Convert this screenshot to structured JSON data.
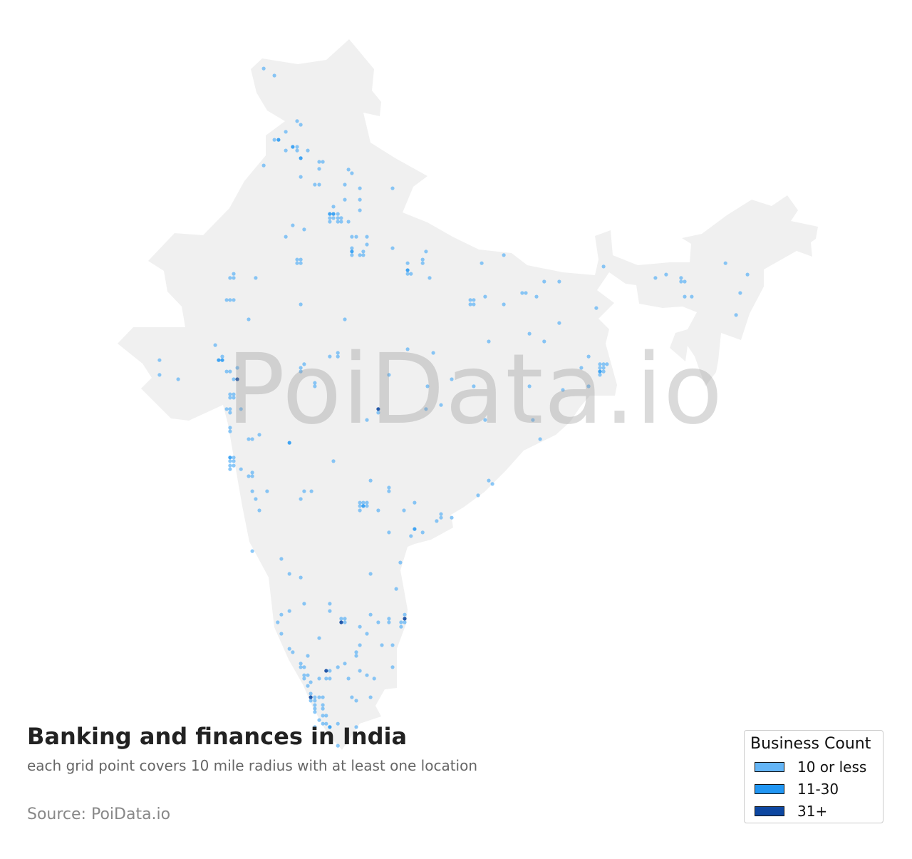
{
  "title": "Banking and finances in India",
  "subtitle": "each grid point covers 10 mile radius with at least one location",
  "source": "Source: PoiData.io",
  "watermark": "PoiData.io",
  "map": {
    "region": "India",
    "land_color": "#f0f0f0"
  },
  "legend": {
    "title": "Business Count",
    "items": [
      {
        "label": "10 or less",
        "color": "#64b5f6"
      },
      {
        "label": "11-30",
        "color": "#2196f3"
      },
      {
        "label": "31+",
        "color": "#0d47a1"
      }
    ]
  },
  "points_format": "[lon, lat, category_index]",
  "points": [
    [
      74.18,
      35.79,
      0
    ],
    [
      74.62,
      35.5,
      0
    ],
    [
      75.56,
      33.62,
      0
    ],
    [
      75.71,
      33.47,
      0
    ],
    [
      75.09,
      33.18,
      0
    ],
    [
      74.62,
      32.85,
      0
    ],
    [
      74.79,
      32.85,
      1
    ],
    [
      75.38,
      32.56,
      1
    ],
    [
      75.56,
      32.56,
      0
    ],
    [
      75.09,
      32.41,
      0
    ],
    [
      75.56,
      32.41,
      0
    ],
    [
      76.0,
      32.41,
      0
    ],
    [
      75.71,
      32.09,
      1
    ],
    [
      74.18,
      31.79,
      0
    ],
    [
      76.47,
      31.94,
      0
    ],
    [
      76.62,
      31.94,
      0
    ],
    [
      76.47,
      31.65,
      0
    ],
    [
      75.71,
      31.32,
      0
    ],
    [
      76.29,
      31.0,
      0
    ],
    [
      76.47,
      31.0,
      0
    ],
    [
      77.68,
      31.62,
      0
    ],
    [
      77.82,
      31.47,
      0
    ],
    [
      77.53,
      31.0,
      0
    ],
    [
      78.15,
      30.85,
      0
    ],
    [
      79.5,
      30.85,
      0
    ],
    [
      78.15,
      30.38,
      0
    ],
    [
      77.53,
      30.38,
      0
    ],
    [
      77.06,
      30.09,
      0
    ],
    [
      76.91,
      29.79,
      1
    ],
    [
      77.06,
      29.79,
      1
    ],
    [
      77.24,
      29.79,
      0
    ],
    [
      76.91,
      29.62,
      0
    ],
    [
      77.06,
      29.62,
      0
    ],
    [
      77.24,
      29.62,
      0
    ],
    [
      77.38,
      29.62,
      0
    ],
    [
      76.91,
      29.47,
      0
    ],
    [
      77.24,
      29.47,
      0
    ],
    [
      77.38,
      29.47,
      0
    ],
    [
      77.68,
      29.47,
      0
    ],
    [
      78.15,
      29.94,
      0
    ],
    [
      75.38,
      29.32,
      0
    ],
    [
      75.85,
      29.15,
      0
    ],
    [
      75.09,
      28.85,
      0
    ],
    [
      77.82,
      28.85,
      0
    ],
    [
      78.0,
      28.85,
      0
    ],
    [
      78.44,
      28.85,
      0
    ],
    [
      78.44,
      28.53,
      0
    ],
    [
      77.82,
      28.38,
      0
    ],
    [
      77.82,
      28.24,
      1
    ],
    [
      78.15,
      28.09,
      0
    ],
    [
      78.29,
      28.24,
      0
    ],
    [
      77.82,
      28.09,
      0
    ],
    [
      78.29,
      28.09,
      0
    ],
    [
      79.5,
      28.38,
      0
    ],
    [
      80.88,
      28.24,
      0
    ],
    [
      80.12,
      27.76,
      0
    ],
    [
      80.74,
      27.91,
      0
    ],
    [
      80.74,
      27.76,
      0
    ],
    [
      80.12,
      27.47,
      1
    ],
    [
      80.12,
      27.32,
      0
    ],
    [
      80.26,
      27.32,
      0
    ],
    [
      81.03,
      27.15,
      0
    ],
    [
      75.56,
      27.91,
      0
    ],
    [
      75.71,
      27.91,
      0
    ],
    [
      75.56,
      27.76,
      0
    ],
    [
      75.71,
      27.76,
      0
    ],
    [
      72.94,
      27.32,
      0
    ],
    [
      72.79,
      27.15,
      0
    ],
    [
      72.94,
      27.15,
      0
    ],
    [
      73.85,
      27.15,
      0
    ],
    [
      72.65,
      26.24,
      0
    ],
    [
      72.79,
      26.24,
      0
    ],
    [
      72.94,
      26.24,
      0
    ],
    [
      75.71,
      26.06,
      0
    ],
    [
      73.56,
      25.44,
      0
    ],
    [
      77.53,
      25.44,
      0
    ],
    [
      83.18,
      27.76,
      0
    ],
    [
      84.09,
      28.09,
      0
    ],
    [
      82.71,
      26.24,
      0
    ],
    [
      82.85,
      26.24,
      0
    ],
    [
      82.71,
      26.06,
      0
    ],
    [
      82.85,
      26.06,
      0
    ],
    [
      83.32,
      26.38,
      0
    ],
    [
      84.09,
      26.06,
      0
    ],
    [
      84.85,
      26.53,
      0
    ],
    [
      85.0,
      26.53,
      0
    ],
    [
      85.44,
      26.38,
      0
    ],
    [
      85.76,
      27.0,
      0
    ],
    [
      86.38,
      27.0,
      0
    ],
    [
      88.21,
      27.62,
      0
    ],
    [
      87.91,
      25.91,
      0
    ],
    [
      86.38,
      25.29,
      0
    ],
    [
      85.15,
      24.85,
      0
    ],
    [
      85.76,
      24.53,
      0
    ],
    [
      83.47,
      24.53,
      0
    ],
    [
      90.35,
      27.15,
      0
    ],
    [
      90.79,
      27.29,
      0
    ],
    [
      91.41,
      27.15,
      0
    ],
    [
      91.56,
      27.0,
      0
    ],
    [
      91.41,
      27.0,
      0
    ],
    [
      91.56,
      26.38,
      0
    ],
    [
      91.85,
      26.38,
      0
    ],
    [
      93.24,
      27.76,
      0
    ],
    [
      94.15,
      27.29,
      0
    ],
    [
      93.85,
      26.53,
      0
    ],
    [
      93.68,
      25.62,
      0
    ],
    [
      87.59,
      23.91,
      0
    ],
    [
      87.29,
      23.44,
      0
    ],
    [
      88.06,
      23.59,
      0
    ],
    [
      88.21,
      23.59,
      0
    ],
    [
      88.35,
      23.59,
      0
    ],
    [
      88.06,
      23.44,
      0
    ],
    [
      88.21,
      23.44,
      0
    ],
    [
      88.06,
      23.29,
      1
    ],
    [
      88.21,
      23.29,
      0
    ],
    [
      88.06,
      23.15,
      0
    ],
    [
      87.59,
      22.68,
      0
    ],
    [
      86.53,
      22.53,
      0
    ],
    [
      85.15,
      22.68,
      0
    ],
    [
      85.29,
      21.29,
      0
    ],
    [
      85.59,
      20.5,
      0
    ],
    [
      83.32,
      21.29,
      0
    ],
    [
      83.47,
      18.79,
      0
    ],
    [
      83.62,
      18.65,
      0
    ],
    [
      83.03,
      18.18,
      0
    ],
    [
      81.94,
      17.26,
      0
    ],
    [
      81.5,
      17.41,
      0
    ],
    [
      81.5,
      17.26,
      0
    ],
    [
      81.32,
      17.12,
      0
    ],
    [
      80.74,
      16.65,
      0
    ],
    [
      80.41,
      16.79,
      1
    ],
    [
      80.26,
      16.5,
      0
    ],
    [
      80.41,
      17.88,
      0
    ],
    [
      79.97,
      17.56,
      0
    ],
    [
      79.35,
      18.5,
      0
    ],
    [
      79.35,
      18.35,
      0
    ],
    [
      78.59,
      18.79,
      0
    ],
    [
      78.15,
      17.88,
      0
    ],
    [
      78.29,
      17.88,
      0
    ],
    [
      78.44,
      17.88,
      0
    ],
    [
      78.15,
      17.74,
      0
    ],
    [
      78.29,
      17.74,
      1
    ],
    [
      78.44,
      17.74,
      0
    ],
    [
      78.15,
      17.56,
      0
    ],
    [
      78.91,
      17.56,
      0
    ],
    [
      79.35,
      16.65,
      0
    ],
    [
      79.82,
      15.41,
      0
    ],
    [
      79.65,
      14.32,
      0
    ],
    [
      78.59,
      14.94,
      0
    ],
    [
      80.0,
      13.26,
      0
    ],
    [
      80.0,
      13.09,
      2
    ],
    [
      79.85,
      12.94,
      0
    ],
    [
      80.0,
      12.94,
      0
    ],
    [
      79.35,
      13.09,
      0
    ],
    [
      79.35,
      12.94,
      0
    ],
    [
      79.85,
      12.76,
      0
    ],
    [
      78.91,
      12.94,
      0
    ],
    [
      78.59,
      13.26,
      0
    ],
    [
      77.38,
      13.09,
      0
    ],
    [
      77.53,
      13.09,
      0
    ],
    [
      77.38,
      12.94,
      2
    ],
    [
      77.53,
      12.94,
      0
    ],
    [
      76.91,
      13.71,
      0
    ],
    [
      76.91,
      13.41,
      0
    ],
    [
      78.15,
      12.76,
      0
    ],
    [
      78.44,
      12.47,
      0
    ],
    [
      79.06,
      12.0,
      0
    ],
    [
      79.5,
      12.0,
      0
    ],
    [
      78.15,
      12.0,
      0
    ],
    [
      78.0,
      11.71,
      0
    ],
    [
      78.0,
      11.56,
      0
    ],
    [
      77.53,
      11.24,
      0
    ],
    [
      77.24,
      11.09,
      0
    ],
    [
      76.91,
      10.94,
      0
    ],
    [
      76.76,
      10.94,
      2
    ],
    [
      76.47,
      12.29,
      0
    ],
    [
      76.0,
      11.56,
      0
    ],
    [
      75.71,
      11.24,
      0
    ],
    [
      75.71,
      11.09,
      0
    ],
    [
      75.85,
      11.09,
      0
    ],
    [
      75.85,
      10.76,
      0
    ],
    [
      76.0,
      10.76,
      0
    ],
    [
      75.85,
      10.62,
      0
    ],
    [
      76.12,
      10.47,
      0
    ],
    [
      76.47,
      10.62,
      0
    ],
    [
      76.76,
      10.62,
      0
    ],
    [
      76.91,
      10.62,
      0
    ],
    [
      77.68,
      10.62,
      0
    ],
    [
      78.15,
      10.94,
      0
    ],
    [
      78.44,
      10.76,
      0
    ],
    [
      78.74,
      10.62,
      0
    ],
    [
      79.5,
      11.09,
      0
    ],
    [
      78.59,
      9.85,
      0
    ],
    [
      77.82,
      9.85,
      0
    ],
    [
      78.0,
      9.71,
      0
    ],
    [
      76.0,
      10.32,
      0
    ],
    [
      76.12,
      10.0,
      0
    ],
    [
      76.12,
      9.85,
      2
    ],
    [
      76.29,
      9.85,
      0
    ],
    [
      76.47,
      9.85,
      0
    ],
    [
      76.62,
      9.85,
      0
    ],
    [
      76.12,
      9.71,
      0
    ],
    [
      76.29,
      9.71,
      0
    ],
    [
      76.29,
      9.53,
      0
    ],
    [
      76.62,
      9.53,
      0
    ],
    [
      76.29,
      9.38,
      0
    ],
    [
      76.62,
      9.38,
      0
    ],
    [
      76.29,
      9.24,
      0
    ],
    [
      76.76,
      9.09,
      0
    ],
    [
      76.62,
      9.09,
      0
    ],
    [
      76.47,
      8.91,
      0
    ],
    [
      76.62,
      8.76,
      0
    ],
    [
      76.76,
      8.76,
      0
    ],
    [
      76.91,
      8.62,
      1
    ],
    [
      77.24,
      8.76,
      0
    ],
    [
      78.0,
      8.62,
      0
    ],
    [
      77.24,
      7.85,
      0
    ],
    [
      76.29,
      8.62,
      0
    ],
    [
      74.91,
      15.56,
      0
    ],
    [
      75.24,
      14.94,
      0
    ],
    [
      75.71,
      14.79,
      0
    ],
    [
      75.85,
      13.71,
      0
    ],
    [
      75.24,
      13.41,
      0
    ],
    [
      74.91,
      13.26,
      0
    ],
    [
      74.76,
      12.94,
      0
    ],
    [
      74.91,
      12.47,
      0
    ],
    [
      75.24,
      11.85,
      0
    ],
    [
      75.38,
      11.71,
      0
    ],
    [
      73.71,
      15.88,
      0
    ],
    [
      72.79,
      19.74,
      1
    ],
    [
      72.94,
      19.74,
      0
    ],
    [
      72.79,
      19.59,
      0
    ],
    [
      72.94,
      19.59,
      0
    ],
    [
      72.79,
      19.41,
      0
    ],
    [
      72.94,
      19.41,
      0
    ],
    [
      72.79,
      19.26,
      0
    ],
    [
      73.24,
      19.26,
      0
    ],
    [
      73.56,
      18.97,
      0
    ],
    [
      73.71,
      19.12,
      0
    ],
    [
      73.71,
      18.97,
      0
    ],
    [
      73.71,
      18.35,
      0
    ],
    [
      73.85,
      18.03,
      0
    ],
    [
      74.0,
      17.56,
      0
    ],
    [
      74.32,
      18.35,
      0
    ],
    [
      75.71,
      18.03,
      0
    ],
    [
      75.85,
      18.35,
      0
    ],
    [
      76.15,
      18.35,
      0
    ],
    [
      75.24,
      20.35,
      1
    ],
    [
      77.06,
      19.59,
      0
    ],
    [
      73.56,
      20.5,
      0
    ],
    [
      73.71,
      20.5,
      0
    ],
    [
      74.0,
      20.68,
      0
    ],
    [
      72.79,
      20.97,
      0
    ],
    [
      72.79,
      20.82,
      0
    ],
    [
      72.65,
      21.74,
      0
    ],
    [
      72.79,
      21.74,
      0
    ],
    [
      72.79,
      21.59,
      0
    ],
    [
      73.24,
      21.74,
      0
    ],
    [
      72.79,
      22.35,
      0
    ],
    [
      72.94,
      22.35,
      0
    ],
    [
      72.79,
      22.21,
      0
    ],
    [
      72.94,
      22.21,
      0
    ],
    [
      72.94,
      22.97,
      0
    ],
    [
      73.09,
      22.97,
      2
    ],
    [
      73.09,
      23.44,
      0
    ],
    [
      72.65,
      23.29,
      0
    ],
    [
      72.79,
      23.29,
      0
    ],
    [
      72.32,
      23.76,
      1
    ],
    [
      72.47,
      23.76,
      1
    ],
    [
      72.47,
      23.91,
      0
    ],
    [
      72.18,
      24.38,
      0
    ],
    [
      69.88,
      23.76,
      0
    ],
    [
      69.88,
      23.15,
      0
    ],
    [
      70.65,
      22.97,
      0
    ],
    [
      75.71,
      23.44,
      0
    ],
    [
      75.85,
      23.59,
      0
    ],
    [
      75.71,
      23.29,
      0
    ],
    [
      76.29,
      22.82,
      0
    ],
    [
      76.29,
      22.68,
      0
    ],
    [
      76.91,
      23.91,
      0
    ],
    [
      77.24,
      24.06,
      0
    ],
    [
      77.24,
      23.91,
      0
    ],
    [
      79.35,
      23.15,
      0
    ],
    [
      80.12,
      24.21,
      0
    ],
    [
      81.18,
      24.06,
      0
    ],
    [
      81.94,
      22.97,
      0
    ],
    [
      82.85,
      22.68,
      0
    ],
    [
      80.94,
      22.68,
      0
    ],
    [
      81.5,
      21.91,
      0
    ],
    [
      80.88,
      21.74,
      0
    ],
    [
      78.91,
      21.74,
      2
    ],
    [
      78.91,
      21.59,
      0
    ],
    [
      78.44,
      21.29,
      0
    ]
  ]
}
